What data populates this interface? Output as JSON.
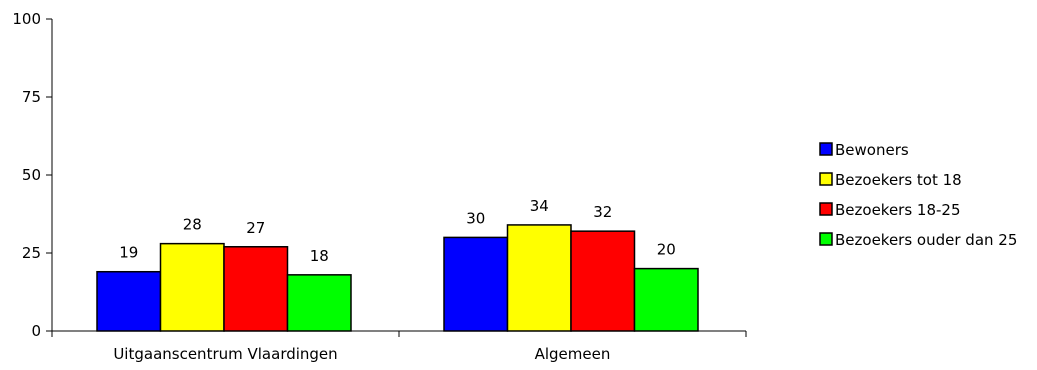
{
  "chart_data": {
    "type": "bar",
    "categories": [
      "Uitgaanscentrum Vlaardingen",
      "Algemeen"
    ],
    "series": [
      {
        "name": "Bewoners",
        "values": [
          19,
          30
        ],
        "color": "#0000FF"
      },
      {
        "name": "Bezoekers tot 18",
        "values": [
          28,
          34
        ],
        "color": "#FFFF00"
      },
      {
        "name": "Bezoekers 18-25",
        "values": [
          27,
          32
        ],
        "color": "#FF0000"
      },
      {
        "name": "Bezoekers ouder dan 25",
        "values": [
          18,
          20
        ],
        "color": "#00FF00"
      }
    ],
    "ylim": [
      0,
      100
    ],
    "yticks": [
      "0",
      "25",
      "50",
      "75",
      "100"
    ],
    "title": "",
    "xlabel": "",
    "ylabel": "",
    "grid": false,
    "legend": "right"
  }
}
